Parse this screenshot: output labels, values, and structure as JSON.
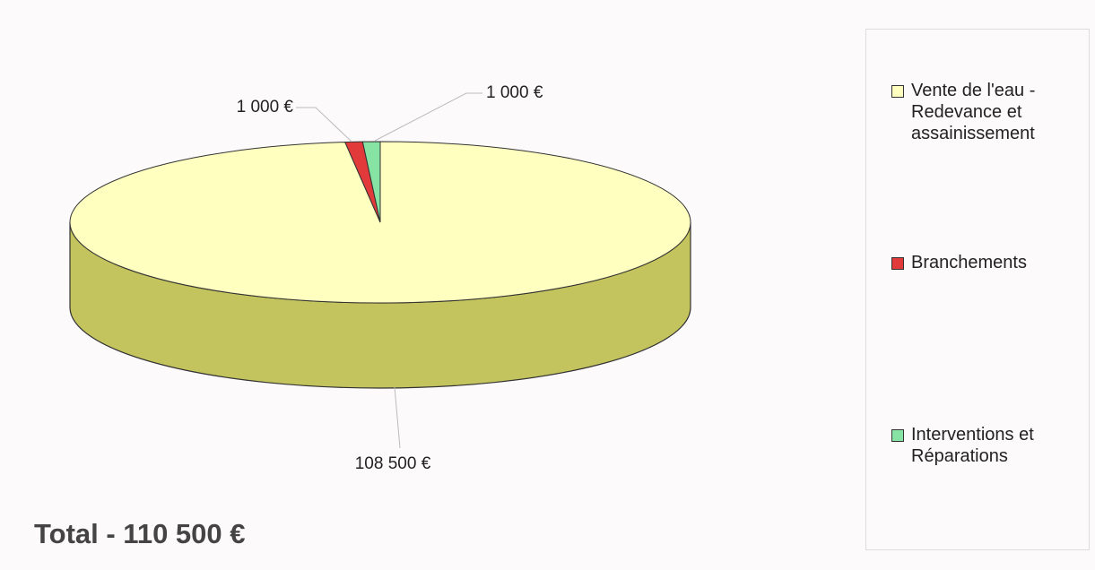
{
  "chart_data": {
    "type": "pie",
    "title": "Total - 110 500 €",
    "categories": [
      "Vente de l'eau - Redevance et assainissement",
      "Branchements",
      "Interventions et Réparations"
    ],
    "values": [
      108500,
      1000,
      1000
    ],
    "value_labels": [
      "108 500 €",
      "1 000 €",
      "1 000 €"
    ],
    "colors": [
      "#ffffc0",
      "#e23a3a",
      "#86e3a4"
    ],
    "three_d": true,
    "legend": "right"
  }
}
